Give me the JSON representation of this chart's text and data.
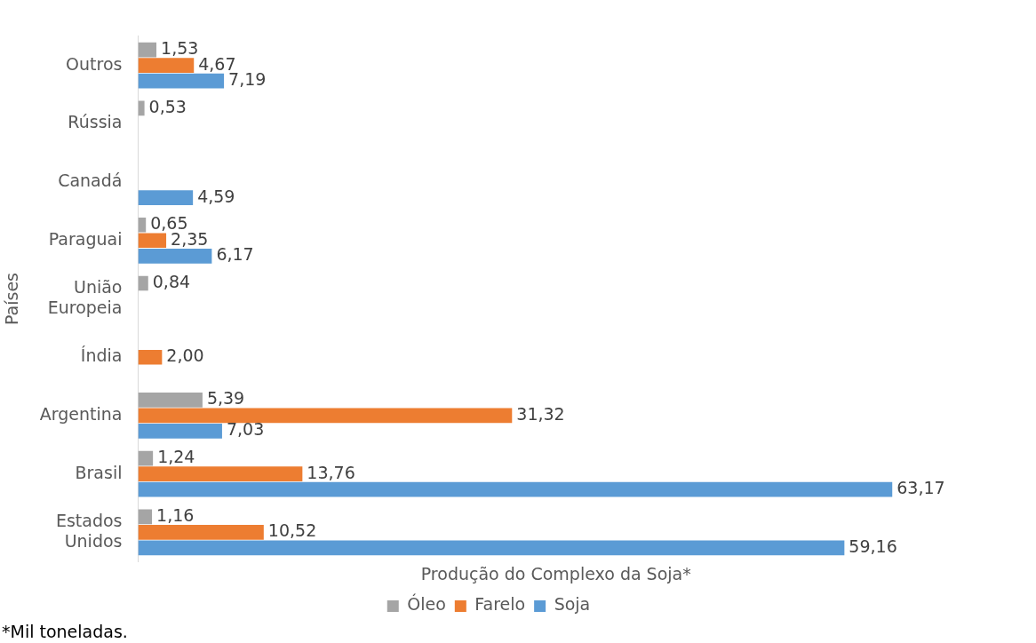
{
  "chart_data": {
    "type": "bar",
    "orientation": "horizontal",
    "xlabel": "Produção do Complexo da Soja*",
    "ylabel": "Países",
    "annotations": [
      "*Mil toneladas."
    ],
    "categories": [
      "Outros",
      "Rússia",
      "Canadá",
      "Paraguai",
      "União Europeia",
      "Índia",
      "Argentina",
      "Brasil",
      "Estados Unidos"
    ],
    "series": [
      {
        "name": "Óleo",
        "color": "#a5a5a5",
        "values": [
          1.53,
          0.53,
          null,
          0.65,
          0.84,
          null,
          5.39,
          1.24,
          1.16
        ],
        "value_labels": [
          "1,53",
          "0,53",
          null,
          "0,65",
          "0,84",
          null,
          "5,39",
          "1,24",
          "1,16"
        ]
      },
      {
        "name": "Farelo",
        "color": "#ed7d31",
        "values": [
          4.67,
          null,
          null,
          2.35,
          null,
          2.0,
          31.32,
          13.76,
          10.52
        ],
        "value_labels": [
          "4,67",
          null,
          null,
          "2,35",
          null,
          "2,00",
          "31,32",
          "13,76",
          "10,52"
        ]
      },
      {
        "name": "Soja",
        "color": "#5b9bd5",
        "values": [
          7.19,
          null,
          4.59,
          6.17,
          null,
          null,
          7.03,
          63.17,
          59.16
        ],
        "value_labels": [
          "7,19",
          null,
          "4,59",
          "6,17",
          null,
          null,
          "7,03",
          "63,17",
          "59,16"
        ]
      }
    ],
    "legend": "bottom",
    "grid": false,
    "tick_labels": "y"
  }
}
